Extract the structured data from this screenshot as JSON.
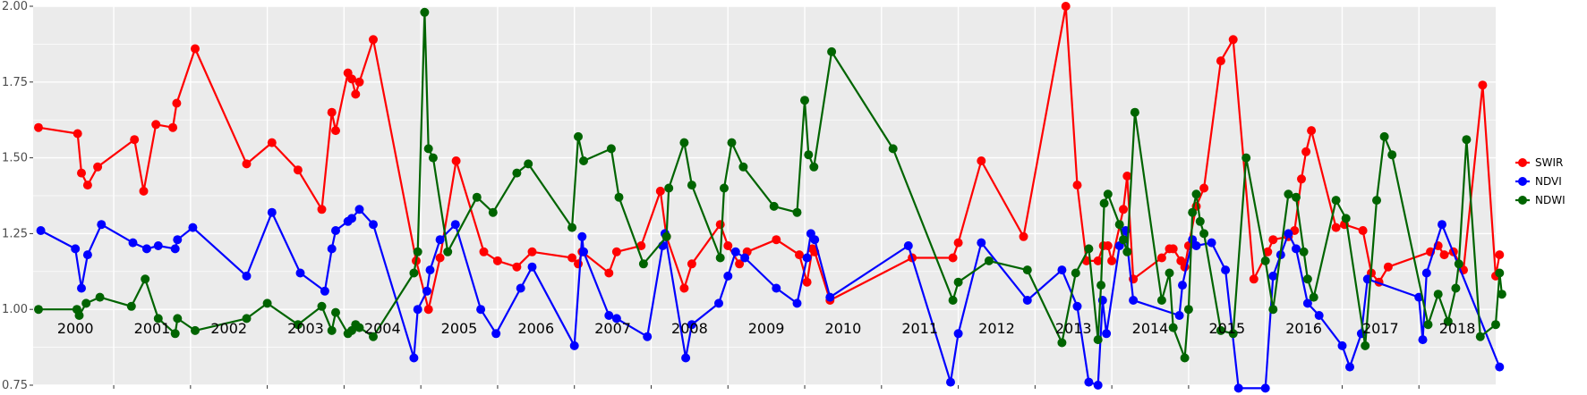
{
  "chart_data": {
    "type": "line",
    "title": "",
    "xlabel": "",
    "ylabel": "",
    "xlim": [
      1999.95,
      2019.0
    ],
    "ylim": [
      0.75,
      2.0
    ],
    "y_ticks": [
      "0.75",
      "1.00",
      "1.25",
      "1.50",
      "1.75",
      "2.00"
    ],
    "grid": true,
    "legend_position": "right",
    "year_labels": [
      "2000",
      "2001",
      "2002",
      "2003",
      "2004",
      "2005",
      "2006",
      "2007",
      "2008",
      "2009",
      "2010",
      "2011",
      "2012",
      "2013",
      "2014",
      "2015",
      "2016",
      "2017",
      "2018"
    ],
    "series": [
      {
        "name": "SWIR",
        "color": "#ff0000",
        "points": [
          [
            2000.02,
            1.6
          ],
          [
            2000.53,
            1.58
          ],
          [
            2000.58,
            1.45
          ],
          [
            2000.66,
            1.41
          ],
          [
            2000.79,
            1.47
          ],
          [
            2001.27,
            1.56
          ],
          [
            2001.39,
            1.39
          ],
          [
            2001.55,
            1.61
          ],
          [
            2001.77,
            1.6
          ],
          [
            2001.82,
            1.68
          ],
          [
            2002.06,
            1.86
          ],
          [
            2002.73,
            1.48
          ],
          [
            2003.06,
            1.55
          ],
          [
            2003.4,
            1.46
          ],
          [
            2003.71,
            1.33
          ],
          [
            2003.84,
            1.65
          ],
          [
            2003.89,
            1.59
          ],
          [
            2004.05,
            1.78
          ],
          [
            2004.1,
            1.76
          ],
          [
            2004.15,
            1.71
          ],
          [
            2004.2,
            1.75
          ],
          [
            2004.38,
            1.89
          ],
          [
            2004.94,
            1.16
          ],
          [
            2005.1,
            1.0
          ],
          [
            2005.25,
            1.17
          ],
          [
            2005.46,
            1.49
          ],
          [
            2005.82,
            1.19
          ],
          [
            2006.0,
            1.16
          ],
          [
            2006.25,
            1.14
          ],
          [
            2006.45,
            1.19
          ],
          [
            2006.97,
            1.17
          ],
          [
            2007.05,
            1.15
          ],
          [
            2007.1,
            1.19
          ],
          [
            2007.45,
            1.12
          ],
          [
            2007.55,
            1.19
          ],
          [
            2007.87,
            1.21
          ],
          [
            2008.12,
            1.39
          ],
          [
            2008.2,
            1.24
          ],
          [
            2008.43,
            1.07
          ],
          [
            2008.53,
            1.15
          ],
          [
            2008.9,
            1.28
          ],
          [
            2009.0,
            1.21
          ],
          [
            2009.15,
            1.15
          ],
          [
            2009.25,
            1.19
          ],
          [
            2009.63,
            1.23
          ],
          [
            2009.93,
            1.18
          ],
          [
            2010.03,
            1.09
          ],
          [
            2010.1,
            1.2
          ],
          [
            2010.13,
            1.19
          ],
          [
            2010.33,
            1.03
          ],
          [
            2011.4,
            1.17
          ],
          [
            2011.93,
            1.17
          ],
          [
            2012.0,
            1.22
          ],
          [
            2012.3,
            1.49
          ],
          [
            2012.85,
            1.24
          ],
          [
            2013.4,
            2.0
          ],
          [
            2013.55,
            1.41
          ],
          [
            2013.67,
            1.16
          ],
          [
            2013.82,
            1.16
          ],
          [
            2013.89,
            1.21
          ],
          [
            2013.95,
            1.21
          ],
          [
            2014.0,
            1.16
          ],
          [
            2014.15,
            1.33
          ],
          [
            2014.2,
            1.44
          ],
          [
            2014.28,
            1.1
          ],
          [
            2014.65,
            1.17
          ],
          [
            2014.75,
            1.2
          ],
          [
            2014.8,
            1.2
          ],
          [
            2014.9,
            1.16
          ],
          [
            2014.95,
            1.14
          ],
          [
            2015.0,
            1.21
          ],
          [
            2015.1,
            1.34
          ],
          [
            2015.2,
            1.4
          ],
          [
            2015.42,
            1.82
          ],
          [
            2015.58,
            1.89
          ],
          [
            2015.85,
            1.1
          ],
          [
            2016.03,
            1.19
          ],
          [
            2016.1,
            1.23
          ],
          [
            2016.3,
            1.24
          ],
          [
            2016.38,
            1.26
          ],
          [
            2016.47,
            1.43
          ],
          [
            2016.53,
            1.52
          ],
          [
            2016.6,
            1.59
          ],
          [
            2016.92,
            1.27
          ],
          [
            2017.03,
            1.28
          ],
          [
            2017.27,
            1.26
          ],
          [
            2017.38,
            1.12
          ],
          [
            2017.48,
            1.09
          ],
          [
            2017.6,
            1.14
          ],
          [
            2018.15,
            1.19
          ],
          [
            2018.25,
            1.21
          ],
          [
            2018.33,
            1.18
          ],
          [
            2018.45,
            1.19
          ],
          [
            2018.58,
            1.13
          ],
          [
            2018.83,
            1.74
          ],
          [
            2019.0,
            1.11
          ],
          [
            2019.05,
            1.18
          ]
        ]
      },
      {
        "name": "NDVI",
        "color": "#0000ff",
        "points": [
          [
            2000.05,
            1.26
          ],
          [
            2000.5,
            1.2
          ],
          [
            2000.58,
            1.07
          ],
          [
            2000.66,
            1.18
          ],
          [
            2000.84,
            1.28
          ],
          [
            2001.25,
            1.22
          ],
          [
            2001.43,
            1.2
          ],
          [
            2001.58,
            1.21
          ],
          [
            2001.8,
            1.2
          ],
          [
            2001.83,
            1.23
          ],
          [
            2002.03,
            1.27
          ],
          [
            2002.73,
            1.11
          ],
          [
            2003.06,
            1.32
          ],
          [
            2003.43,
            1.12
          ],
          [
            2003.75,
            1.06
          ],
          [
            2003.84,
            1.2
          ],
          [
            2003.89,
            1.26
          ],
          [
            2004.05,
            1.29
          ],
          [
            2004.1,
            1.3
          ],
          [
            2004.2,
            1.33
          ],
          [
            2004.38,
            1.28
          ],
          [
            2004.91,
            0.84
          ],
          [
            2004.96,
            1.0
          ],
          [
            2005.08,
            1.06
          ],
          [
            2005.12,
            1.13
          ],
          [
            2005.25,
            1.23
          ],
          [
            2005.45,
            1.28
          ],
          [
            2005.78,
            1.0
          ],
          [
            2005.98,
            0.92
          ],
          [
            2006.3,
            1.07
          ],
          [
            2006.45,
            1.14
          ],
          [
            2007.0,
            0.88
          ],
          [
            2007.1,
            1.24
          ],
          [
            2007.12,
            1.19
          ],
          [
            2007.45,
            0.98
          ],
          [
            2007.55,
            0.97
          ],
          [
            2007.95,
            0.91
          ],
          [
            2008.15,
            1.21
          ],
          [
            2008.18,
            1.25
          ],
          [
            2008.45,
            0.84
          ],
          [
            2008.53,
            0.95
          ],
          [
            2008.88,
            1.02
          ],
          [
            2009.0,
            1.11
          ],
          [
            2009.1,
            1.19
          ],
          [
            2009.22,
            1.17
          ],
          [
            2009.63,
            1.07
          ],
          [
            2009.9,
            1.02
          ],
          [
            2010.03,
            1.17
          ],
          [
            2010.08,
            1.25
          ],
          [
            2010.13,
            1.23
          ],
          [
            2010.33,
            1.04
          ],
          [
            2011.35,
            1.21
          ],
          [
            2011.9,
            0.76
          ],
          [
            2012.0,
            0.92
          ],
          [
            2012.3,
            1.22
          ],
          [
            2012.9,
            1.03
          ],
          [
            2013.35,
            1.13
          ],
          [
            2013.55,
            1.01
          ],
          [
            2013.7,
            0.76
          ],
          [
            2013.82,
            0.75
          ],
          [
            2013.88,
            1.03
          ],
          [
            2013.93,
            0.92
          ],
          [
            2014.1,
            1.21
          ],
          [
            2014.18,
            1.26
          ],
          [
            2014.28,
            1.03
          ],
          [
            2014.88,
            0.98
          ],
          [
            2014.92,
            1.08
          ],
          [
            2015.05,
            1.23
          ],
          [
            2015.1,
            1.21
          ],
          [
            2015.3,
            1.22
          ],
          [
            2015.48,
            1.13
          ],
          [
            2015.65,
            0.74
          ],
          [
            2016.0,
            0.74
          ],
          [
            2016.1,
            1.11
          ],
          [
            2016.2,
            1.18
          ],
          [
            2016.3,
            1.25
          ],
          [
            2016.4,
            1.2
          ],
          [
            2016.55,
            1.02
          ],
          [
            2016.7,
            0.98
          ],
          [
            2017.0,
            0.88
          ],
          [
            2017.1,
            0.81
          ],
          [
            2017.25,
            0.92
          ],
          [
            2017.33,
            1.1
          ],
          [
            2018.0,
            1.04
          ],
          [
            2018.05,
            0.9
          ],
          [
            2018.1,
            1.12
          ],
          [
            2018.3,
            1.28
          ],
          [
            2019.05,
            0.81
          ]
        ]
      },
      {
        "name": "NDWI",
        "color": "#006400",
        "points": [
          [
            2000.02,
            1.0
          ],
          [
            2000.52,
            1.0
          ],
          [
            2000.55,
            0.98
          ],
          [
            2000.64,
            1.02
          ],
          [
            2000.82,
            1.04
          ],
          [
            2001.23,
            1.01
          ],
          [
            2001.41,
            1.1
          ],
          [
            2001.58,
            0.97
          ],
          [
            2001.8,
            0.92
          ],
          [
            2001.83,
            0.97
          ],
          [
            2002.06,
            0.93
          ],
          [
            2002.73,
            0.97
          ],
          [
            2003.0,
            1.02
          ],
          [
            2003.4,
            0.95
          ],
          [
            2003.71,
            1.01
          ],
          [
            2003.84,
            0.93
          ],
          [
            2003.89,
            0.99
          ],
          [
            2004.05,
            0.92
          ],
          [
            2004.1,
            0.93
          ],
          [
            2004.15,
            0.95
          ],
          [
            2004.2,
            0.94
          ],
          [
            2004.38,
            0.91
          ],
          [
            2004.91,
            1.12
          ],
          [
            2004.96,
            1.19
          ],
          [
            2005.05,
            1.98
          ],
          [
            2005.1,
            1.53
          ],
          [
            2005.16,
            1.5
          ],
          [
            2005.35,
            1.19
          ],
          [
            2005.73,
            1.37
          ],
          [
            2005.94,
            1.32
          ],
          [
            2006.25,
            1.45
          ],
          [
            2006.4,
            1.48
          ],
          [
            2006.97,
            1.27
          ],
          [
            2007.05,
            1.57
          ],
          [
            2007.12,
            1.49
          ],
          [
            2007.48,
            1.53
          ],
          [
            2007.58,
            1.37
          ],
          [
            2007.9,
            1.15
          ],
          [
            2008.2,
            1.24
          ],
          [
            2008.23,
            1.4
          ],
          [
            2008.43,
            1.55
          ],
          [
            2008.53,
            1.41
          ],
          [
            2008.9,
            1.17
          ],
          [
            2008.95,
            1.4
          ],
          [
            2009.05,
            1.55
          ],
          [
            2009.2,
            1.47
          ],
          [
            2009.6,
            1.34
          ],
          [
            2009.9,
            1.32
          ],
          [
            2010.0,
            1.69
          ],
          [
            2010.05,
            1.51
          ],
          [
            2010.12,
            1.47
          ],
          [
            2010.35,
            1.85
          ],
          [
            2011.15,
            1.53
          ],
          [
            2011.93,
            1.03
          ],
          [
            2012.0,
            1.09
          ],
          [
            2012.4,
            1.16
          ],
          [
            2012.9,
            1.13
          ],
          [
            2013.35,
            0.89
          ],
          [
            2013.53,
            1.12
          ],
          [
            2013.7,
            1.2
          ],
          [
            2013.82,
            0.9
          ],
          [
            2013.86,
            1.08
          ],
          [
            2013.9,
            1.35
          ],
          [
            2013.95,
            1.38
          ],
          [
            2014.1,
            1.28
          ],
          [
            2014.15,
            1.23
          ],
          [
            2014.2,
            1.19
          ],
          [
            2014.3,
            1.65
          ],
          [
            2014.65,
            1.03
          ],
          [
            2014.75,
            1.12
          ],
          [
            2014.8,
            0.94
          ],
          [
            2014.95,
            0.84
          ],
          [
            2015.0,
            1.0
          ],
          [
            2015.05,
            1.32
          ],
          [
            2015.1,
            1.38
          ],
          [
            2015.15,
            1.29
          ],
          [
            2015.2,
            1.25
          ],
          [
            2015.42,
            0.93
          ],
          [
            2015.58,
            0.92
          ],
          [
            2015.75,
            1.5
          ],
          [
            2016.0,
            1.16
          ],
          [
            2016.1,
            1.0
          ],
          [
            2016.3,
            1.38
          ],
          [
            2016.4,
            1.37
          ],
          [
            2016.5,
            1.19
          ],
          [
            2016.55,
            1.1
          ],
          [
            2016.63,
            1.04
          ],
          [
            2016.92,
            1.36
          ],
          [
            2017.05,
            1.3
          ],
          [
            2017.3,
            0.88
          ],
          [
            2017.45,
            1.36
          ],
          [
            2017.55,
            1.57
          ],
          [
            2017.65,
            1.51
          ],
          [
            2018.12,
            0.95
          ],
          [
            2018.25,
            1.05
          ],
          [
            2018.38,
            0.96
          ],
          [
            2018.48,
            1.07
          ],
          [
            2018.52,
            1.15
          ],
          [
            2018.62,
            1.56
          ],
          [
            2018.8,
            0.91
          ],
          [
            2019.0,
            0.95
          ],
          [
            2019.05,
            1.12
          ],
          [
            2019.08,
            1.05
          ]
        ]
      }
    ]
  }
}
